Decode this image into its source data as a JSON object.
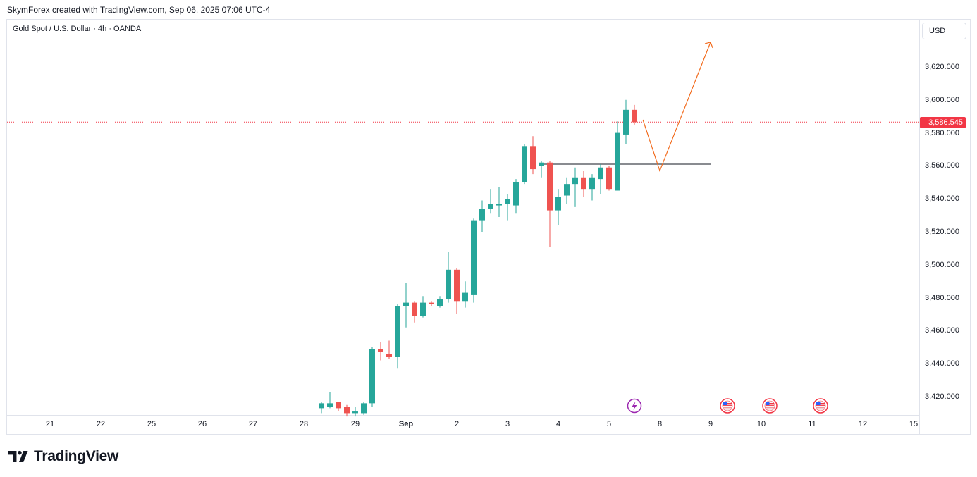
{
  "header": {
    "attribution": "SkymForex created with TradingView.com, Sep 06, 2025 07:06 UTC-4"
  },
  "chart": {
    "symbol_line": "Gold Spot / U.S. Dollar · 4h · OANDA",
    "currency": "USD",
    "last_price": "3,586.545",
    "price_labels": [
      "3,620.000",
      "3,600.000",
      "3,580.000",
      "3,560.000",
      "3,540.000",
      "3,520.000",
      "3,500.000",
      "3,480.000",
      "3,460.000",
      "3,440.000",
      "3,420.000"
    ],
    "time_labels": [
      "21",
      "22",
      "25",
      "26",
      "27",
      "28",
      "29",
      "Sep",
      "2",
      "3",
      "4",
      "5",
      "8",
      "9",
      "10",
      "11",
      "12",
      "15"
    ],
    "colors": {
      "up": "#26a69a",
      "down": "#ef5350",
      "projection": "#f26b1d",
      "level": "#131722",
      "last_price": "#f23645"
    },
    "event_icons": [
      "lightning-event-icon",
      "us-flag-event-icon",
      "us-flag-event-icon",
      "us-flag-event-icon"
    ]
  },
  "chart_data": {
    "type": "candlestick",
    "title": "Gold Spot / U.S. Dollar · 4h · OANDA",
    "ylabel": "USD",
    "ylim": [
      3410,
      3640
    ],
    "candles": [
      {
        "t": "Aug 28 12:00",
        "o": 3413,
        "h": 3417,
        "l": 3410,
        "c": 3416
      },
      {
        "t": "Aug 28 16:00",
        "o": 3414,
        "h": 3423,
        "l": 3413,
        "c": 3416
      },
      {
        "t": "Aug 28 20:00",
        "o": 3417,
        "h": 3417,
        "l": 3411,
        "c": 3413
      },
      {
        "t": "Aug 29 00:00",
        "o": 3414,
        "h": 3415,
        "l": 3408,
        "c": 3410
      },
      {
        "t": "Aug 29 04:00",
        "o": 3410,
        "h": 3414,
        "l": 3408,
        "c": 3411
      },
      {
        "t": "Aug 29 08:00",
        "o": 3410,
        "h": 3417,
        "l": 3409,
        "c": 3416
      },
      {
        "t": "Aug 29 12:00",
        "o": 3416,
        "h": 3450,
        "l": 3414,
        "c": 3449
      },
      {
        "t": "Aug 29 16:00",
        "o": 3449,
        "h": 3453,
        "l": 3442,
        "c": 3447
      },
      {
        "t": "Sep 1 00:00",
        "o": 3446,
        "h": 3454,
        "l": 3443,
        "c": 3444
      },
      {
        "t": "Sep 1 04:00",
        "o": 3444,
        "h": 3476,
        "l": 3437,
        "c": 3475
      },
      {
        "t": "Sep 1 08:00",
        "o": 3475,
        "h": 3489,
        "l": 3462,
        "c": 3477
      },
      {
        "t": "Sep 1 12:00",
        "o": 3477,
        "h": 3478,
        "l": 3465,
        "c": 3469
      },
      {
        "t": "Sep 1 16:00",
        "o": 3469,
        "h": 3481,
        "l": 3468,
        "c": 3477
      },
      {
        "t": "Sep 1 20:00",
        "o": 3477,
        "h": 3478,
        "l": 3475,
        "c": 3476
      },
      {
        "t": "Sep 2 00:00",
        "o": 3475,
        "h": 3481,
        "l": 3474,
        "c": 3479
      },
      {
        "t": "Sep 2 04:00",
        "o": 3479,
        "h": 3508,
        "l": 3477,
        "c": 3497
      },
      {
        "t": "Sep 2 08:00",
        "o": 3497,
        "h": 3498,
        "l": 3470,
        "c": 3478
      },
      {
        "t": "Sep 2 12:00",
        "o": 3478,
        "h": 3490,
        "l": 3474,
        "c": 3483
      },
      {
        "t": "Sep 2 16:00",
        "o": 3482,
        "h": 3528,
        "l": 3477,
        "c": 3527
      },
      {
        "t": "Sep 2 20:00",
        "o": 3527,
        "h": 3539,
        "l": 3520,
        "c": 3534
      },
      {
        "t": "Sep 3 00:00",
        "o": 3534,
        "h": 3546,
        "l": 3531,
        "c": 3537
      },
      {
        "t": "Sep 3 04:00",
        "o": 3536,
        "h": 3547,
        "l": 3529,
        "c": 3537
      },
      {
        "t": "Sep 3 08:00",
        "o": 3537,
        "h": 3543,
        "l": 3527,
        "c": 3540
      },
      {
        "t": "Sep 3 12:00",
        "o": 3536,
        "h": 3552,
        "l": 3531,
        "c": 3550
      },
      {
        "t": "Sep 3 16:00",
        "o": 3550,
        "h": 3573,
        "l": 3549,
        "c": 3572
      },
      {
        "t": "Sep 3 20:00",
        "o": 3572,
        "h": 3578,
        "l": 3555,
        "c": 3558
      },
      {
        "t": "Sep 4 00:00",
        "o": 3560,
        "h": 3563,
        "l": 3553,
        "c": 3562
      },
      {
        "t": "Sep 4 04:00",
        "o": 3562,
        "h": 3563,
        "l": 3511,
        "c": 3533
      },
      {
        "t": "Sep 4 08:00",
        "o": 3533,
        "h": 3546,
        "l": 3524,
        "c": 3541
      },
      {
        "t": "Sep 4 12:00",
        "o": 3542,
        "h": 3553,
        "l": 3537,
        "c": 3549
      },
      {
        "t": "Sep 4 16:00",
        "o": 3549,
        "h": 3559,
        "l": 3535,
        "c": 3553
      },
      {
        "t": "Sep 4 20:00",
        "o": 3553,
        "h": 3557,
        "l": 3541,
        "c": 3546
      },
      {
        "t": "Sep 5 00:00",
        "o": 3546,
        "h": 3555,
        "l": 3539,
        "c": 3553
      },
      {
        "t": "Sep 5 04:00",
        "o": 3552,
        "h": 3561,
        "l": 3543,
        "c": 3559
      },
      {
        "t": "Sep 5 08:00",
        "o": 3559,
        "h": 3560,
        "l": 3545,
        "c": 3546
      },
      {
        "t": "Sep 5 12:00",
        "o": 3545,
        "h": 3587,
        "l": 3545,
        "c": 3580
      },
      {
        "t": "Sep 5 16:00",
        "o": 3579,
        "h": 3600,
        "l": 3573,
        "c": 3594
      },
      {
        "t": "Sep 5 20:00",
        "o": 3594,
        "h": 3597,
        "l": 3585,
        "c": 3586.545
      }
    ],
    "annotations": {
      "horizontal_level": {
        "price": 3561,
        "from": "Sep 4 00:00",
        "to": "Sep 9"
      },
      "projection_path": [
        {
          "t": "Sep 5 20:00",
          "price": 3588
        },
        {
          "t": "Sep 8",
          "price": 3557
        },
        {
          "t": "Sep 9",
          "price": 3635
        }
      ]
    }
  },
  "brand": {
    "name": "TradingView"
  }
}
